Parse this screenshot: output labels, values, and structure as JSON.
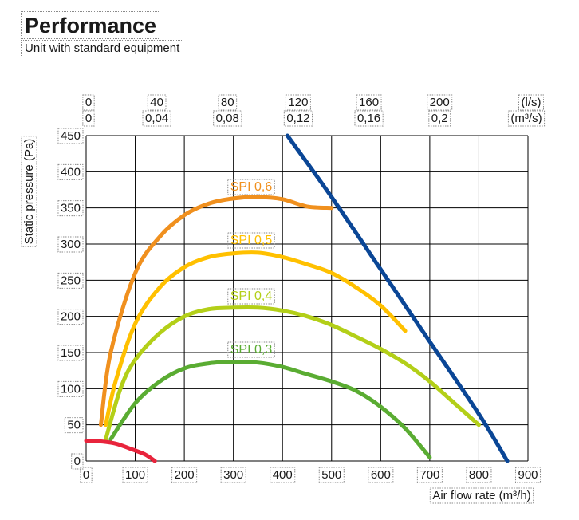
{
  "header": {
    "title": "Performance",
    "subtitle": "Unit with standard equipment"
  },
  "chart_data": {
    "type": "line",
    "title": "Performance",
    "subtitle": "Unit with standard equipment",
    "xlabel": "Air flow rate (m³/h)",
    "ylabel": "Static pressure (Pa)",
    "xlim": [
      0,
      900
    ],
    "ylim": [
      0,
      450
    ],
    "x_ticks": [
      "0",
      "100",
      "200",
      "300",
      "400",
      "500",
      "600",
      "700",
      "800",
      "900"
    ],
    "y_ticks": [
      "0",
      "50",
      "100",
      "150",
      "200",
      "250",
      "300",
      "350",
      "400",
      "450"
    ],
    "top_axis_ls": {
      "unit": "(l/s)",
      "ticks": [
        "0",
        "40",
        "80",
        "120",
        "160",
        "200"
      ]
    },
    "top_axis_m3s": {
      "unit": "(m³/s)",
      "ticks": [
        "0",
        "0,04",
        "0,08",
        "0,12",
        "0,16",
        "0,2"
      ]
    },
    "grid": true,
    "series": [
      {
        "name": "SPI 0,6",
        "color": "#f0901e",
        "x": [
          30,
          50,
          100,
          150,
          200,
          250,
          300,
          350,
          400,
          450,
          500
        ],
        "y": [
          50,
          150,
          260,
          310,
          340,
          356,
          363,
          365,
          362,
          352,
          350
        ]
      },
      {
        "name": "SPI 0,5",
        "color": "#ffc000",
        "x": [
          40,
          60,
          100,
          150,
          200,
          250,
          300,
          350,
          400,
          450,
          500,
          550,
          600,
          650
        ],
        "y": [
          50,
          110,
          190,
          240,
          268,
          282,
          287,
          288,
          282,
          272,
          260,
          240,
          215,
          180
        ]
      },
      {
        "name": "SPI 0,4",
        "color": "#b3cf18",
        "x": [
          40,
          70,
          100,
          150,
          200,
          250,
          300,
          350,
          400,
          450,
          500,
          550,
          600,
          650,
          700,
          750,
          800
        ],
        "y": [
          30,
          100,
          140,
          177,
          200,
          210,
          212,
          212,
          208,
          200,
          188,
          172,
          155,
          135,
          110,
          80,
          50
        ]
      },
      {
        "name": "SPI 0,3",
        "color": "#5aac32",
        "x": [
          50,
          100,
          150,
          200,
          250,
          300,
          350,
          400,
          450,
          500,
          550,
          600,
          650,
          700
        ],
        "y": [
          30,
          80,
          110,
          128,
          135,
          137,
          136,
          130,
          120,
          110,
          97,
          75,
          45,
          5
        ]
      },
      {
        "name": "",
        "color": "#0a4696",
        "x": [
          410,
          500,
          600,
          700,
          800,
          858
        ],
        "y": [
          450,
          365,
          265,
          165,
          65,
          0
        ]
      },
      {
        "name": "",
        "color": "#e8243c",
        "x": [
          0,
          30,
          60,
          90,
          120,
          140
        ],
        "y": [
          28,
          27,
          24,
          17,
          9,
          0
        ]
      }
    ]
  }
}
